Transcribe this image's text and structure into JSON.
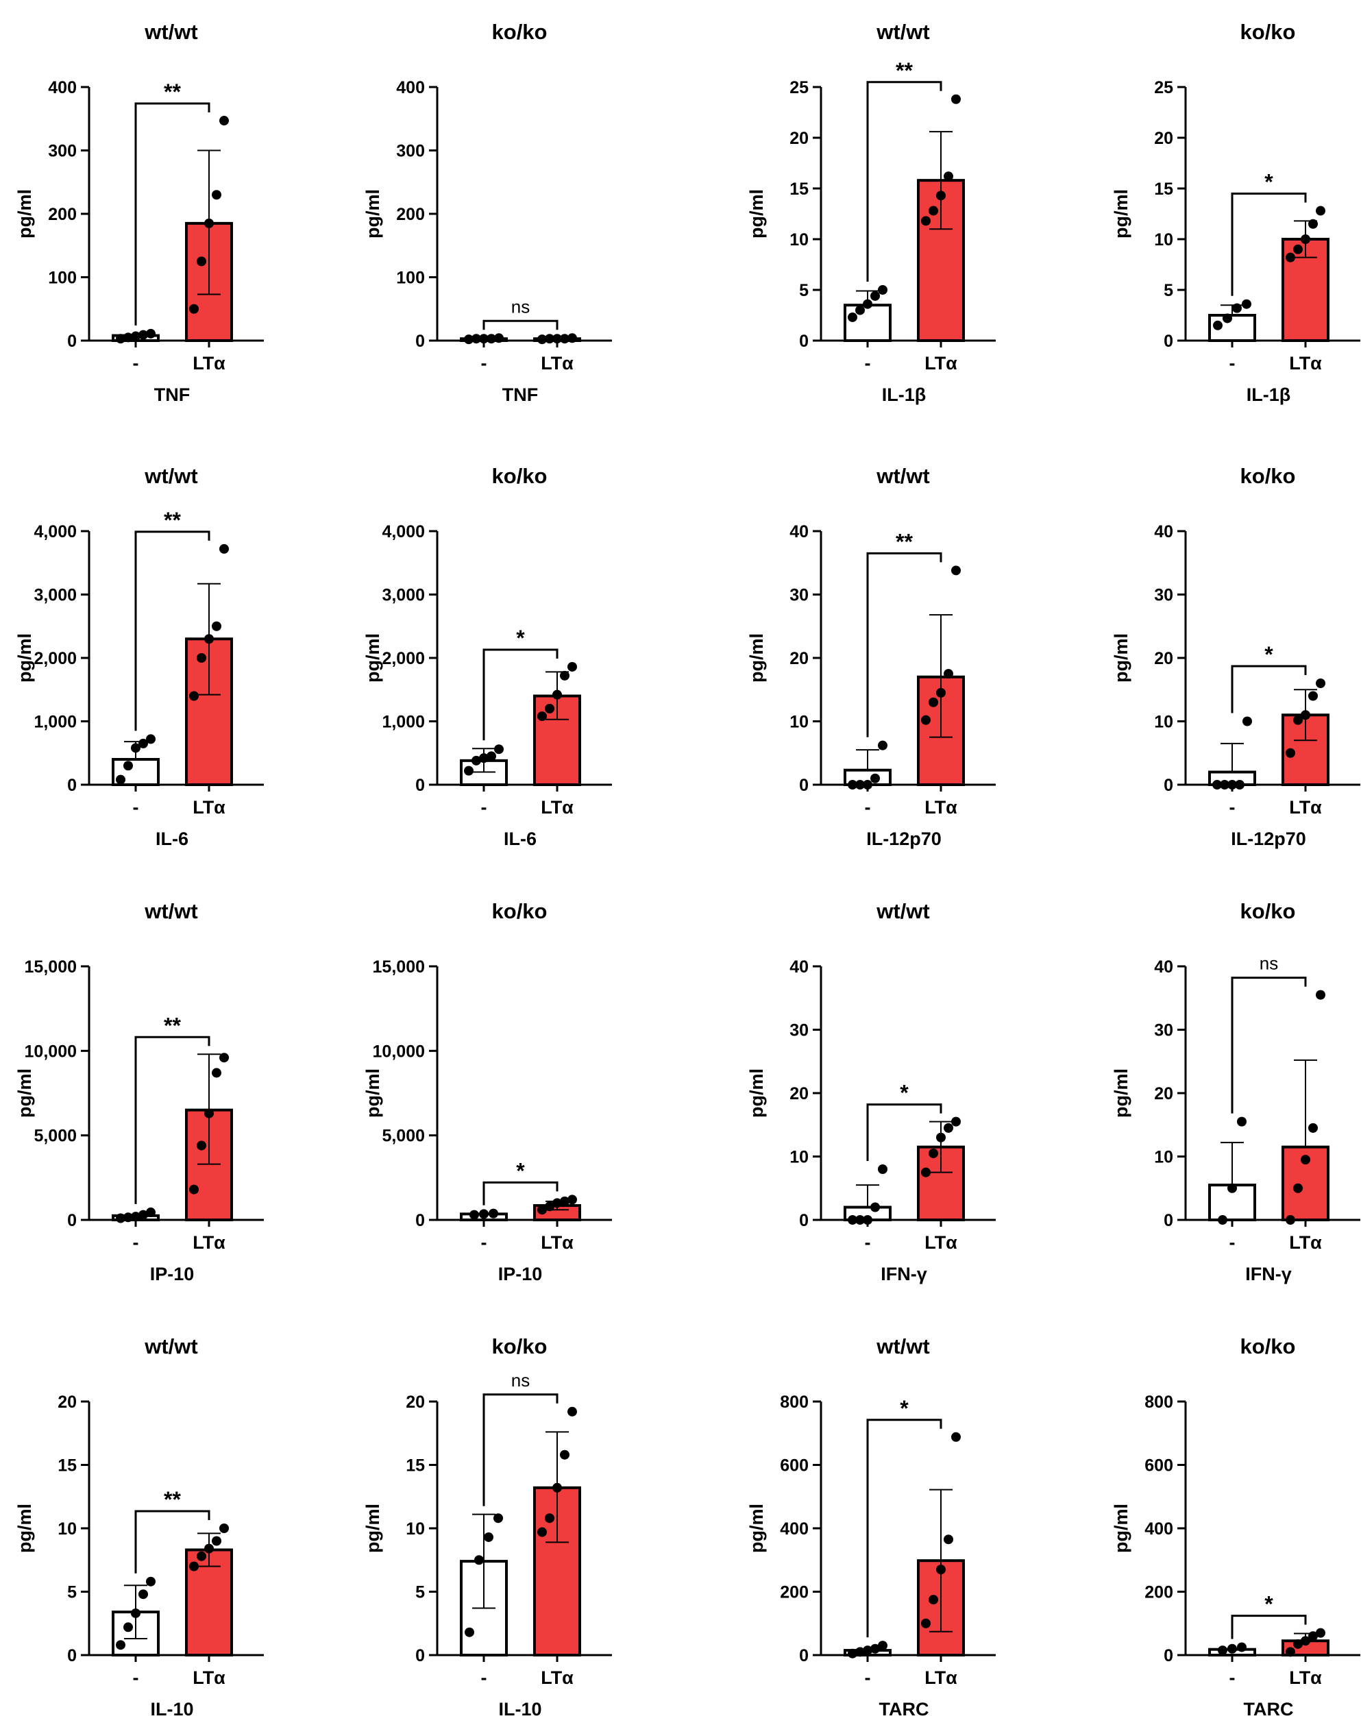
{
  "colors": {
    "control_fill": "#ffffff",
    "treated_fill": "#f03c3c",
    "axis": "#000000",
    "point": "#000000"
  },
  "chart_data": [
    {
      "type": "bar",
      "genotype": "wt/wt",
      "cytokine": "TNF",
      "ylabel": "pg/ml",
      "yticks": [
        "0",
        "100",
        "200",
        "300",
        "400"
      ],
      "ylim": [
        0,
        400
      ],
      "categories": [
        "-",
        "LTα"
      ],
      "values": [
        8,
        185
      ],
      "sd_upper": [
        null,
        300
      ],
      "sd_lower": [
        null,
        73
      ],
      "points": [
        [
          3,
          5,
          7,
          9,
          11
        ],
        [
          50,
          125,
          185,
          230,
          347
        ]
      ],
      "significance": "**"
    },
    {
      "type": "bar",
      "genotype": "ko/ko",
      "cytokine": "TNF",
      "ylabel": "pg/ml",
      "yticks": [
        "0",
        "100",
        "200",
        "300",
        "400"
      ],
      "ylim": [
        0,
        400
      ],
      "categories": [
        "-",
        "LTα"
      ],
      "values": [
        3,
        3
      ],
      "sd_upper": [
        null,
        null
      ],
      "sd_lower": [
        null,
        null
      ],
      "points": [
        [
          2,
          3,
          3,
          3,
          4
        ],
        [
          2,
          3,
          3,
          3,
          4
        ]
      ],
      "significance": "ns"
    },
    {
      "type": "bar",
      "genotype": "wt/wt",
      "cytokine": "IL-1β",
      "ylabel": "pg/ml",
      "yticks": [
        "0",
        "5",
        "10",
        "15",
        "20",
        "25"
      ],
      "ylim": [
        0,
        25
      ],
      "categories": [
        "-",
        "LTα"
      ],
      "values": [
        3.5,
        15.8
      ],
      "sd_upper": [
        4.9,
        20.6
      ],
      "sd_lower": [
        null,
        11.0
      ],
      "points": [
        [
          2.3,
          3.0,
          3.6,
          4.4,
          5.0
        ],
        [
          11.8,
          12.8,
          14.3,
          16.2,
          23.8
        ]
      ],
      "significance": "**"
    },
    {
      "type": "bar",
      "genotype": "ko/ko",
      "cytokine": "IL-1β",
      "ylabel": "pg/ml",
      "yticks": [
        "0",
        "5",
        "10",
        "15",
        "20",
        "25"
      ],
      "ylim": [
        0,
        25
      ],
      "categories": [
        "-",
        "LTα"
      ],
      "values": [
        2.5,
        10.0
      ],
      "sd_upper": [
        3.5,
        11.8
      ],
      "sd_lower": [
        null,
        8.2
      ],
      "points": [
        [
          1.5,
          2.2,
          3.2,
          3.6
        ],
        [
          8.2,
          9.0,
          10.0,
          11.5,
          12.8
        ]
      ],
      "significance": "*"
    },
    {
      "type": "bar",
      "genotype": "wt/wt",
      "cytokine": "IL-6",
      "ylabel": "pg/ml",
      "yticks": [
        "0",
        "1,000",
        "2,000",
        "3,000",
        "4,000"
      ],
      "ylim": [
        0,
        4000
      ],
      "categories": [
        "-",
        "LTα"
      ],
      "values": [
        400,
        2300
      ],
      "sd_upper": [
        680,
        3170
      ],
      "sd_lower": [
        null,
        1420
      ],
      "points": [
        [
          80,
          300,
          580,
          650,
          720
        ],
        [
          1400,
          2000,
          2300,
          2500,
          3720
        ]
      ],
      "significance": "**"
    },
    {
      "type": "bar",
      "genotype": "ko/ko",
      "cytokine": "IL-6",
      "ylabel": "pg/ml",
      "yticks": [
        "0",
        "1,000",
        "2,000",
        "3,000",
        "4,000"
      ],
      "ylim": [
        0,
        4000
      ],
      "categories": [
        "-",
        "LTα"
      ],
      "values": [
        380,
        1400
      ],
      "sd_upper": [
        570,
        1780
      ],
      "sd_lower": [
        200,
        1030
      ],
      "points": [
        [
          220,
          380,
          420,
          450,
          560
        ],
        [
          1080,
          1200,
          1420,
          1720,
          1860
        ]
      ],
      "significance": "*"
    },
    {
      "type": "bar",
      "genotype": "wt/wt",
      "cytokine": "IL-12p70",
      "ylabel": "pg/ml",
      "yticks": [
        "0",
        "10",
        "20",
        "30",
        "40"
      ],
      "ylim": [
        0,
        40
      ],
      "categories": [
        "-",
        "LTα"
      ],
      "values": [
        2.3,
        17.0
      ],
      "sd_upper": [
        5.5,
        26.8
      ],
      "sd_lower": [
        null,
        7.5
      ],
      "points": [
        [
          0,
          0,
          0,
          1.0,
          6.2
        ],
        [
          10.2,
          13.0,
          14.5,
          17.5,
          33.8
        ]
      ],
      "significance": "**"
    },
    {
      "type": "bar",
      "genotype": "ko/ko",
      "cytokine": "IL-12p70",
      "ylabel": "pg/ml",
      "yticks": [
        "0",
        "10",
        "20",
        "30",
        "40"
      ],
      "ylim": [
        0,
        40
      ],
      "categories": [
        "-",
        "LTα"
      ],
      "values": [
        2.0,
        11.0
      ],
      "sd_upper": [
        6.5,
        15.0
      ],
      "sd_lower": [
        null,
        7.0
      ],
      "points": [
        [
          0,
          0,
          0,
          0,
          10.0
        ],
        [
          5.0,
          10.2,
          11.0,
          14.0,
          16.0
        ]
      ],
      "significance": "*"
    },
    {
      "type": "bar",
      "genotype": "wt/wt",
      "cytokine": "IP-10",
      "ylabel": "pg/ml",
      "yticks": [
        "0",
        "5,000",
        "10,000",
        "15,000"
      ],
      "ylim": [
        0,
        15000
      ],
      "categories": [
        "-",
        "LTα"
      ],
      "values": [
        250,
        6500
      ],
      "sd_upper": [
        null,
        9800
      ],
      "sd_lower": [
        null,
        3300
      ],
      "points": [
        [
          100,
          150,
          200,
          300,
          450
        ],
        [
          1800,
          4400,
          6300,
          8700,
          9600
        ]
      ],
      "significance": "**"
    },
    {
      "type": "bar",
      "genotype": "ko/ko",
      "cytokine": "IP-10",
      "ylabel": "pg/ml",
      "yticks": [
        "0",
        "5,000",
        "10,000",
        "15,000"
      ],
      "ylim": [
        0,
        15000
      ],
      "categories": [
        "-",
        "LTα"
      ],
      "values": [
        350,
        850
      ],
      "sd_upper": [
        null,
        1100
      ],
      "sd_lower": [
        null,
        600
      ],
      "points": [
        [
          300,
          350,
          380
        ],
        [
          600,
          800,
          1000,
          1100,
          1200
        ]
      ],
      "significance": "*"
    },
    {
      "type": "bar",
      "genotype": "wt/wt",
      "cytokine": "IFN-γ",
      "ylabel": "pg/ml",
      "yticks": [
        "0",
        "10",
        "20",
        "30",
        "40"
      ],
      "ylim": [
        0,
        40
      ],
      "categories": [
        "-",
        "LTα"
      ],
      "values": [
        2.0,
        11.5
      ],
      "sd_upper": [
        5.5,
        15.5
      ],
      "sd_lower": [
        null,
        7.5
      ],
      "points": [
        [
          0,
          0,
          0,
          2.0,
          8.0
        ],
        [
          7.5,
          10.5,
          13.0,
          14.5,
          15.5
        ]
      ],
      "significance": "*"
    },
    {
      "type": "bar",
      "genotype": "ko/ko",
      "cytokine": "IFN-γ",
      "ylabel": "pg/ml",
      "yticks": [
        "0",
        "10",
        "20",
        "30",
        "40"
      ],
      "ylim": [
        0,
        40
      ],
      "categories": [
        "-",
        "LTα"
      ],
      "values": [
        5.5,
        11.5
      ],
      "sd_upper": [
        12.2,
        25.2
      ],
      "sd_lower": [
        null,
        null
      ],
      "points": [
        [
          0,
          5.0,
          15.5
        ],
        [
          0,
          5.0,
          9.5,
          14.5,
          35.5
        ]
      ],
      "significance": "ns"
    },
    {
      "type": "bar",
      "genotype": "wt/wt",
      "cytokine": "IL-10",
      "ylabel": "pg/ml",
      "yticks": [
        "0",
        "5",
        "10",
        "15",
        "20"
      ],
      "ylim": [
        0,
        20
      ],
      "categories": [
        "-",
        "LTα"
      ],
      "values": [
        3.4,
        8.3
      ],
      "sd_upper": [
        5.5,
        9.6
      ],
      "sd_lower": [
        1.3,
        7.0
      ],
      "points": [
        [
          0.8,
          2.2,
          3.3,
          4.8,
          5.8
        ],
        [
          7.0,
          7.8,
          8.4,
          9.0,
          10.0
        ]
      ],
      "significance": "**"
    },
    {
      "type": "bar",
      "genotype": "ko/ko",
      "cytokine": "IL-10",
      "ylabel": "pg/ml",
      "yticks": [
        "0",
        "5",
        "10",
        "15",
        "20"
      ],
      "ylim": [
        0,
        20
      ],
      "categories": [
        "-",
        "LTα"
      ],
      "values": [
        7.4,
        13.2
      ],
      "sd_upper": [
        11.1,
        17.6
      ],
      "sd_lower": [
        3.7,
        8.9
      ],
      "points": [
        [
          1.8,
          7.5,
          9.3,
          10.8
        ],
        [
          9.7,
          10.8,
          13.2,
          15.8,
          19.2
        ]
      ],
      "significance": "ns"
    },
    {
      "type": "bar",
      "genotype": "wt/wt",
      "cytokine": "TARC",
      "ylabel": "pg/ml",
      "yticks": [
        "0",
        "200",
        "400",
        "600",
        "800"
      ],
      "ylim": [
        0,
        800
      ],
      "categories": [
        "-",
        "LTα"
      ],
      "values": [
        15,
        298
      ],
      "sd_upper": [
        null,
        522
      ],
      "sd_lower": [
        null,
        74
      ],
      "points": [
        [
          5,
          10,
          15,
          20,
          30
        ],
        [
          100,
          175,
          270,
          365,
          688
        ]
      ],
      "significance": "*"
    },
    {
      "type": "bar",
      "genotype": "ko/ko",
      "cytokine": "TARC",
      "ylabel": "pg/ml",
      "yticks": [
        "0",
        "200",
        "400",
        "600",
        "800"
      ],
      "ylim": [
        0,
        800
      ],
      "categories": [
        "-",
        "LTα"
      ],
      "values": [
        18,
        45
      ],
      "sd_upper": [
        null,
        68
      ],
      "sd_lower": [
        null,
        null
      ],
      "points": [
        [
          15,
          20,
          25
        ],
        [
          10,
          35,
          45,
          60,
          70
        ]
      ],
      "significance": "*"
    }
  ]
}
